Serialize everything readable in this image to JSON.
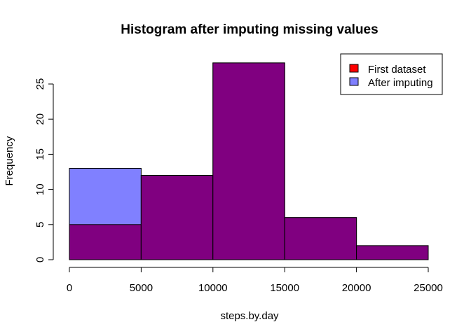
{
  "chart_data": {
    "type": "bar",
    "title": "Histogram after imputing missing values",
    "xlabel": "steps.by.day",
    "ylabel": "Frequency",
    "bins": [
      [
        0,
        5000
      ],
      [
        5000,
        10000
      ],
      [
        10000,
        15000
      ],
      [
        15000,
        20000
      ],
      [
        20000,
        25000
      ]
    ],
    "xlim": [
      0,
      25000
    ],
    "ylim": [
      0,
      28
    ],
    "x_ticks": [
      "0",
      "5000",
      "10000",
      "15000",
      "20000",
      "25000"
    ],
    "y_ticks": [
      "0",
      "5",
      "10",
      "15",
      "20",
      "25"
    ],
    "series": [
      {
        "name": "First dataset",
        "values": [
          5,
          12,
          28,
          6,
          2
        ],
        "color": "#ff0000"
      },
      {
        "name": "After imputing",
        "values": [
          13,
          12,
          28,
          6,
          2
        ],
        "color": "#8080ff"
      }
    ],
    "overlap_color": "#800080",
    "legend_position": "top-right",
    "grid": false
  }
}
